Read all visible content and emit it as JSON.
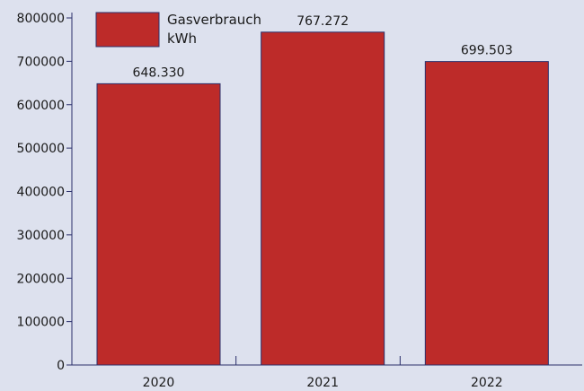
{
  "chart_data": {
    "type": "bar",
    "categories": [
      "2020",
      "2021",
      "2022"
    ],
    "series": [
      {
        "name": "Gasverbrauch kWh",
        "name_lines": [
          "Gasverbrauch",
          "kWh"
        ],
        "values": [
          648330,
          767272,
          699503
        ],
        "value_labels": [
          "648.330",
          "767.272",
          "699.503"
        ]
      }
    ],
    "y_ticks": [
      "0",
      "100000",
      "200000",
      "300000",
      "400000",
      "500000",
      "600000",
      "700000",
      "800000"
    ],
    "ylim": [
      0,
      800000
    ],
    "grid": false,
    "legend_position": "top-left",
    "colors": {
      "bar_fill": "#bd2b29",
      "bar_stroke": "#2a2f6b",
      "axis": "#2a2f6b",
      "background": "#dde1ee"
    }
  }
}
